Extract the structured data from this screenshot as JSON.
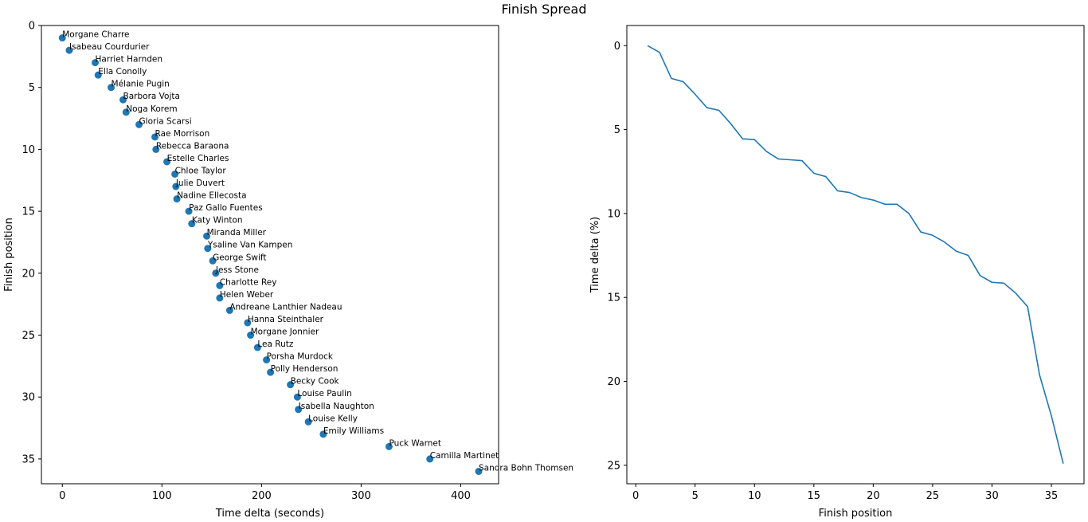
{
  "title": "Finish Spread",
  "colors": {
    "series": "#1f77b4",
    "axis": "#000000",
    "background": "#ffffff"
  },
  "chart_data": [
    {
      "type": "scatter",
      "title": "",
      "xlabel": "Time delta (seconds)",
      "ylabel": "Finish position",
      "xlim": [
        -21,
        438
      ],
      "ylim": [
        0,
        37
      ],
      "y_inverted": true,
      "xticks": [
        0,
        100,
        200,
        300,
        400
      ],
      "yticks": [
        0,
        5,
        10,
        15,
        20,
        25,
        30,
        35
      ],
      "grid": false,
      "points": [
        {
          "x": 0,
          "y": 1,
          "label": "Morgane Charre"
        },
        {
          "x": 7,
          "y": 2,
          "label": "Isabeau Courdurier"
        },
        {
          "x": 33,
          "y": 3,
          "label": "Harriet Harnden"
        },
        {
          "x": 36,
          "y": 4,
          "label": "Ella Conolly"
        },
        {
          "x": 49,
          "y": 5,
          "label": "Mélanie Pugin"
        },
        {
          "x": 61,
          "y": 6,
          "label": "Barbora Vojta"
        },
        {
          "x": 64,
          "y": 7,
          "label": "Noga Korem"
        },
        {
          "x": 77,
          "y": 8,
          "label": "Gloria Scarsi"
        },
        {
          "x": 93,
          "y": 9,
          "label": "Rae Morrison"
        },
        {
          "x": 94,
          "y": 10,
          "label": "Rebecca Baraona"
        },
        {
          "x": 105,
          "y": 11,
          "label": "Estelle Charles"
        },
        {
          "x": 113,
          "y": 12,
          "label": "Chloe Taylor"
        },
        {
          "x": 114,
          "y": 13,
          "label": "Julie Duvert"
        },
        {
          "x": 115,
          "y": 14,
          "label": "Nadine Ellecosta"
        },
        {
          "x": 127,
          "y": 15,
          "label": "Paz Gallo Fuentes"
        },
        {
          "x": 130,
          "y": 16,
          "label": "Katy Winton"
        },
        {
          "x": 145,
          "y": 17,
          "label": "Miranda Miller"
        },
        {
          "x": 146,
          "y": 18,
          "label": "Ysaline Van Kampen"
        },
        {
          "x": 151,
          "y": 19,
          "label": "George Swift"
        },
        {
          "x": 154,
          "y": 20,
          "label": "Jess Stone"
        },
        {
          "x": 158,
          "y": 21,
          "label": "Charlotte  Rey"
        },
        {
          "x": 158,
          "y": 22,
          "label": "Helen Weber"
        },
        {
          "x": 168,
          "y": 23,
          "label": "Andreane Lanthier Nadeau"
        },
        {
          "x": 186,
          "y": 24,
          "label": "Hanna Steinthaler"
        },
        {
          "x": 189,
          "y": 25,
          "label": "Morgane Jonnier"
        },
        {
          "x": 196,
          "y": 26,
          "label": "Lea  Rutz"
        },
        {
          "x": 205,
          "y": 27,
          "label": "Porsha Murdock"
        },
        {
          "x": 209,
          "y": 28,
          "label": "Polly Henderson"
        },
        {
          "x": 229,
          "y": 29,
          "label": "Becky Cook"
        },
        {
          "x": 236,
          "y": 30,
          "label": "Louise Paulin"
        },
        {
          "x": 237,
          "y": 31,
          "label": "Isabella Naughton"
        },
        {
          "x": 247,
          "y": 32,
          "label": "Louise  Kelly"
        },
        {
          "x": 262,
          "y": 33,
          "label": "Emily Williams"
        },
        {
          "x": 328,
          "y": 34,
          "label": "Puck Warnet"
        },
        {
          "x": 369,
          "y": 35,
          "label": "Camilla Martinet"
        },
        {
          "x": 418,
          "y": 36,
          "label": "Sandra Bohn Thomsen"
        }
      ]
    },
    {
      "type": "line",
      "title": "",
      "xlabel": "Finish position",
      "ylabel": "Time delta (%)",
      "xlim": [
        -0.75,
        37.75
      ],
      "ylim": [
        -1.2,
        26.1
      ],
      "y_inverted": true,
      "xticks": [
        0,
        5,
        10,
        15,
        20,
        25,
        30,
        35
      ],
      "yticks": [
        0,
        5,
        10,
        15,
        20,
        25
      ],
      "grid": false,
      "series": [
        {
          "x": [
            1,
            2,
            3,
            4,
            5,
            6,
            7,
            8,
            9,
            10,
            11,
            12,
            13,
            14,
            15,
            16,
            17,
            18,
            19,
            20,
            21,
            22,
            23,
            24,
            25,
            26,
            27,
            28,
            29,
            30,
            31,
            32,
            33,
            34,
            35,
            36
          ],
          "y": [
            0,
            0.4,
            1.95,
            2.15,
            2.9,
            3.7,
            3.85,
            4.65,
            5.55,
            5.6,
            6.3,
            6.75,
            6.8,
            6.85,
            7.6,
            7.8,
            8.65,
            8.75,
            9.05,
            9.2,
            9.45,
            9.45,
            10.0,
            11.1,
            11.3,
            11.7,
            12.25,
            12.5,
            13.7,
            14.1,
            14.15,
            14.75,
            15.55,
            19.6,
            22.05,
            24.9
          ]
        }
      ]
    }
  ]
}
